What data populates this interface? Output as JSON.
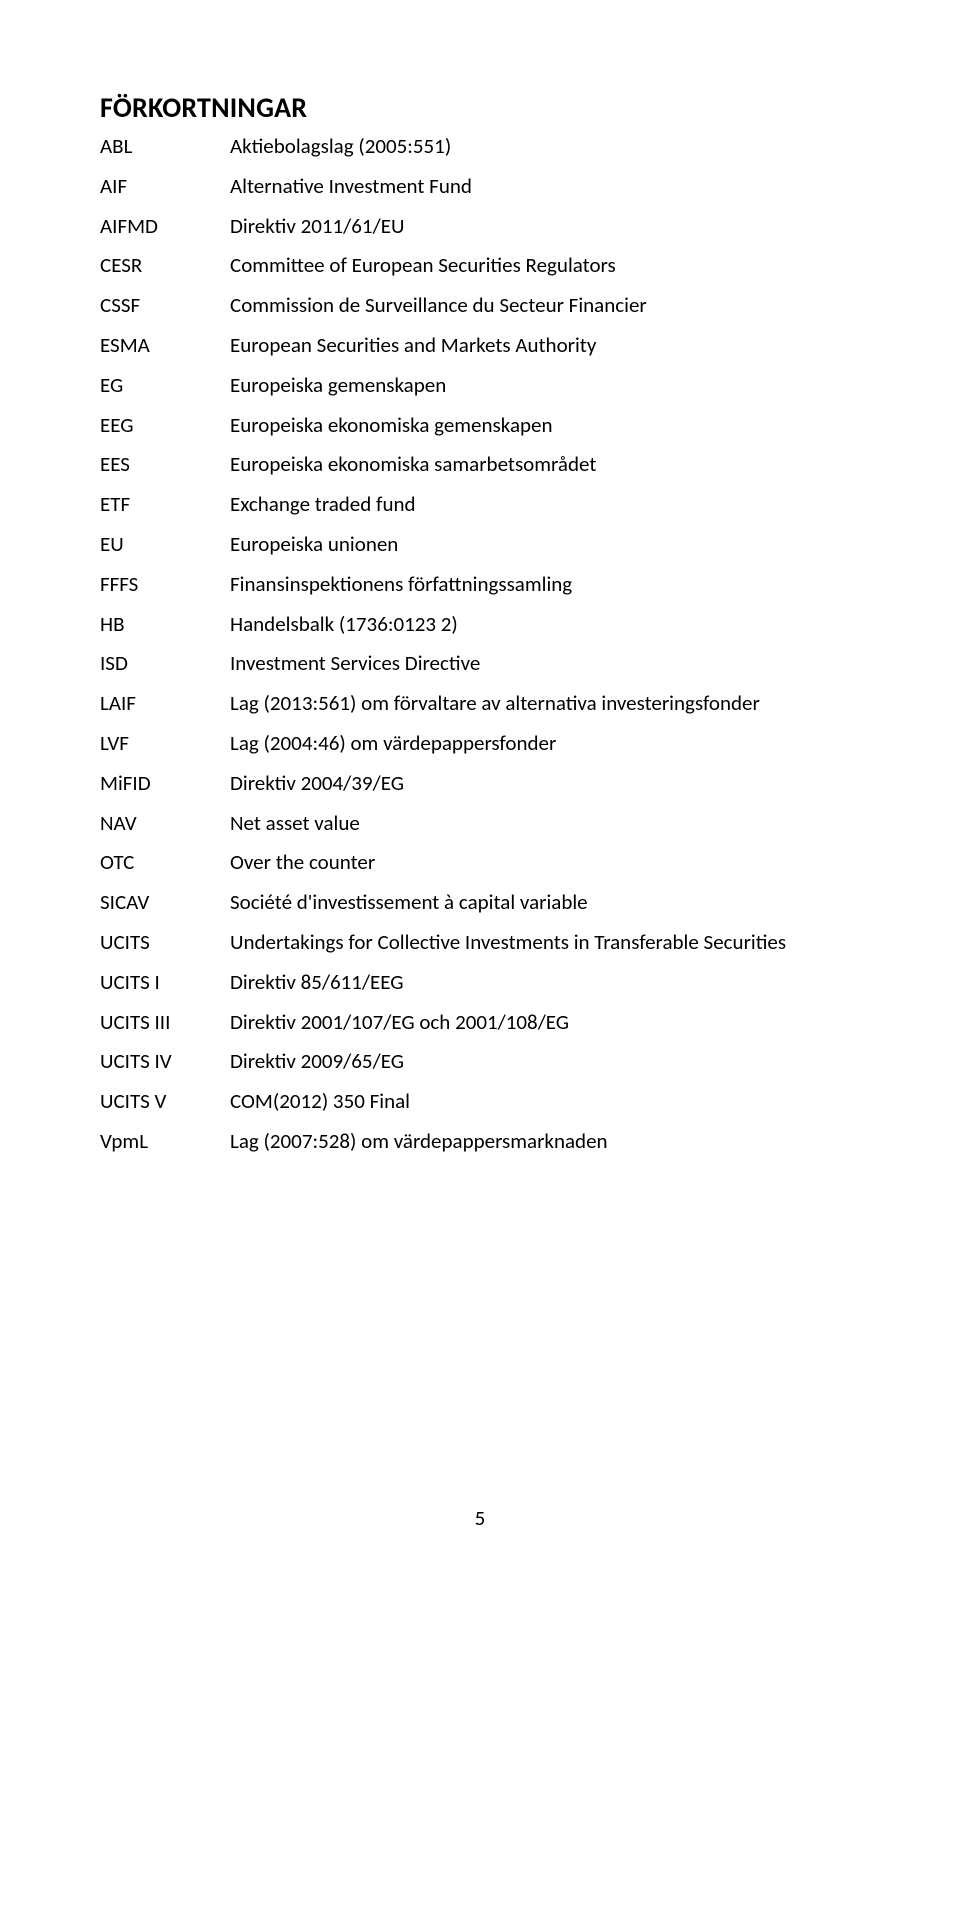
{
  "heading": "FÖRKORTNINGAR",
  "entries": [
    {
      "abbr": "ABL",
      "def": "Aktiebolagslag (2005:551)"
    },
    {
      "abbr": "AIF",
      "def": "Alternative Investment Fund"
    },
    {
      "abbr": "AIFMD",
      "def": "Direktiv 2011/61/EU"
    },
    {
      "abbr": "CESR",
      "def": "Committee of European Securities Regulators"
    },
    {
      "abbr": "CSSF",
      "def": "Commission de Surveillance du Secteur Financier"
    },
    {
      "abbr": "ESMA",
      "def": "European Securities and Markets Authority"
    },
    {
      "abbr": "EG",
      "def": "Europeiska gemenskapen"
    },
    {
      "abbr": "EEG",
      "def": "Europeiska ekonomiska gemenskapen"
    },
    {
      "abbr": "EES",
      "def": "Europeiska ekonomiska samarbetsområdet"
    },
    {
      "abbr": "ETF",
      "def": "Exchange traded fund"
    },
    {
      "abbr": "EU",
      "def": "Europeiska unionen"
    },
    {
      "abbr": "FFFS",
      "def": "Finansinspektionens författningssamling"
    },
    {
      "abbr": "HB",
      "def": "Handelsbalk (1736:0123 2)"
    },
    {
      "abbr": "ISD",
      "def": "Investment Services Directive"
    },
    {
      "abbr": "LAIF",
      "def": "Lag (2013:561) om förvaltare av alternativa investeringsfonder"
    },
    {
      "abbr": "LVF",
      "def": "Lag (2004:46) om värdepappersfonder"
    },
    {
      "abbr": "MiFID",
      "def": "Direktiv 2004/39/EG"
    },
    {
      "abbr": "NAV",
      "def": "Net asset value"
    },
    {
      "abbr": "OTC",
      "def": "Over the counter"
    },
    {
      "abbr": "SICAV",
      "def": "Société d'investissement à capital variable"
    },
    {
      "abbr": "UCITS",
      "def": "Undertakings for Collective Investments in Transferable Securities"
    },
    {
      "abbr": "UCITS I",
      "def": "Direktiv 85/611/EEG"
    },
    {
      "abbr": "UCITS III",
      "def": "Direktiv 2001/107/EG och 2001/108/EG"
    },
    {
      "abbr": "UCITS IV",
      "def": "Direktiv 2009/65/EG"
    },
    {
      "abbr": "UCITS V",
      "def": "COM(2012) 350 Final"
    },
    {
      "abbr": "VpmL",
      "def": "Lag (2007:528) om värdepappersmarknaden"
    }
  ],
  "page_number": "5"
}
